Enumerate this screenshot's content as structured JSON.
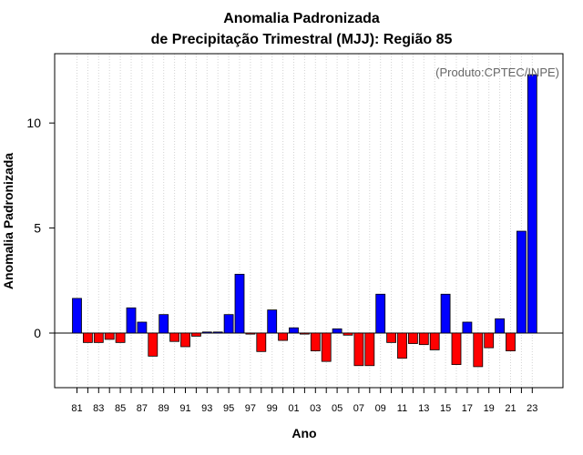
{
  "chart_data": {
    "type": "bar",
    "title_line1": "Anomalia Padronizada",
    "title_line2": "de Precipitação Trimestral (MJJ): Região 85",
    "xlabel": "Ano",
    "ylabel": "Anomalia Padronizada",
    "credit": "(Produto:CPTEC/INPE)",
    "ylim": [
      -2.6,
      13.3
    ],
    "yticks": [
      0,
      5,
      10
    ],
    "ytick_labels": [
      "0",
      "5",
      "10"
    ],
    "xtick_labels": [
      "81",
      "83",
      "85",
      "87",
      "89",
      "91",
      "93",
      "95",
      "97",
      "99",
      "01",
      "03",
      "05",
      "07",
      "09",
      "11",
      "13",
      "15",
      "17",
      "19",
      "21",
      "23"
    ],
    "categories": [
      "1981",
      "1982",
      "1983",
      "1984",
      "1985",
      "1986",
      "1987",
      "1988",
      "1989",
      "1990",
      "1991",
      "1992",
      "1993",
      "1994",
      "1995",
      "1996",
      "1997",
      "1998",
      "1999",
      "2000",
      "2001",
      "2002",
      "2003",
      "2004",
      "2005",
      "2006",
      "2007",
      "2008",
      "2009",
      "2010",
      "2011",
      "2012",
      "2013",
      "2014",
      "2015",
      "2016",
      "2017",
      "2018",
      "2019",
      "2020",
      "2021",
      "2022",
      "2023"
    ],
    "values": [
      1.65,
      -0.45,
      -0.45,
      -0.3,
      -0.45,
      1.2,
      0.52,
      -1.1,
      0.88,
      -0.4,
      -0.65,
      -0.15,
      0.05,
      0.05,
      0.88,
      2.8,
      -0.05,
      -0.88,
      1.1,
      -0.35,
      0.25,
      -0.05,
      -0.85,
      -1.35,
      0.2,
      -0.1,
      -1.55,
      -1.55,
      1.85,
      -0.45,
      -1.2,
      -0.5,
      -0.55,
      -0.8,
      1.85,
      -1.5,
      0.52,
      -1.6,
      -0.7,
      0.68,
      -0.85,
      4.85,
      12.3
    ],
    "positive_color": "#0000ff",
    "negative_color": "#ff0000",
    "grid": true
  }
}
